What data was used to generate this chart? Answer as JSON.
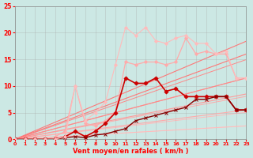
{
  "xlabel": "Vent moyen/en rafales ( km/h )",
  "ylabel": "",
  "xlim": [
    0,
    23
  ],
  "ylim": [
    0,
    25
  ],
  "xticks": [
    0,
    1,
    2,
    3,
    4,
    5,
    6,
    7,
    8,
    9,
    10,
    11,
    12,
    13,
    14,
    15,
    16,
    17,
    18,
    19,
    20,
    21,
    22,
    23
  ],
  "yticks": [
    0,
    5,
    10,
    15,
    20,
    25
  ],
  "background_color": "#cce8e4",
  "grid_color": "#aaaaaa",
  "series": [
    {
      "x": [
        0,
        23
      ],
      "y": [
        0,
        2.5
      ],
      "color": "#ffbbbb",
      "linewidth": 0.7,
      "marker": null,
      "linestyle": "-"
    },
    {
      "x": [
        0,
        23
      ],
      "y": [
        0,
        5.5
      ],
      "color": "#ffaaaa",
      "linewidth": 0.8,
      "marker": null,
      "linestyle": "-"
    },
    {
      "x": [
        0,
        23
      ],
      "y": [
        0,
        8.5
      ],
      "color": "#ff9999",
      "linewidth": 0.8,
      "marker": null,
      "linestyle": "-"
    },
    {
      "x": [
        0,
        23
      ],
      "y": [
        0,
        11.5
      ],
      "color": "#ff8888",
      "linewidth": 0.8,
      "marker": null,
      "linestyle": "-"
    },
    {
      "x": [
        0,
        23
      ],
      "y": [
        0,
        16.0
      ],
      "color": "#ff7777",
      "linewidth": 0.8,
      "marker": null,
      "linestyle": "-"
    },
    {
      "x": [
        0,
        1,
        2,
        3,
        4,
        5,
        6,
        7,
        8,
        9,
        10,
        11,
        12,
        13,
        14,
        15,
        16,
        17,
        18,
        19,
        20,
        21,
        22,
        23
      ],
      "y": [
        0,
        0,
        0,
        0,
        0.5,
        1.5,
        10.0,
        3.0,
        2.5,
        3.5,
        5.0,
        14.5,
        14.0,
        14.5,
        14.5,
        14.0,
        14.5,
        19.0,
        16.0,
        16.5,
        16.0,
        16.0,
        11.5,
        11.5
      ],
      "color": "#ffaaaa",
      "linewidth": 0.9,
      "marker": "D",
      "markersize": 2,
      "linestyle": "-"
    },
    {
      "x": [
        0,
        1,
        2,
        3,
        4,
        5,
        6,
        7,
        8,
        9,
        10,
        11,
        12,
        13,
        14,
        15,
        16,
        17,
        18,
        19,
        20,
        21,
        22,
        23
      ],
      "y": [
        0,
        0,
        0,
        0,
        0,
        0.5,
        1.5,
        0.5,
        1.5,
        3.0,
        5.0,
        11.5,
        10.5,
        10.5,
        11.5,
        9.0,
        9.5,
        8.0,
        8.0,
        8.0,
        8.0,
        8.0,
        5.5,
        5.5
      ],
      "color": "#cc0000",
      "linewidth": 1.2,
      "marker": "D",
      "markersize": 2.5,
      "linestyle": "-"
    },
    {
      "x": [
        0,
        1,
        2,
        3,
        4,
        5,
        6,
        7,
        8,
        9,
        10,
        11,
        12,
        13,
        14,
        15,
        16,
        17,
        18,
        19,
        20,
        21,
        22,
        23
      ],
      "y": [
        0,
        0,
        0,
        0,
        0,
        0.3,
        0.5,
        0.3,
        0.8,
        1.0,
        1.5,
        2.0,
        3.5,
        4.0,
        4.5,
        5.0,
        5.5,
        6.0,
        7.5,
        7.5,
        8.0,
        8.0,
        5.5,
        5.5
      ],
      "color": "#880000",
      "linewidth": 1.0,
      "marker": "x",
      "markersize": 3,
      "linestyle": "-"
    },
    {
      "x": [
        0,
        1,
        2,
        3,
        4,
        5,
        6,
        7,
        8,
        9,
        10,
        11,
        12,
        13,
        14,
        15,
        16,
        17,
        18,
        19,
        20,
        21,
        22,
        23
      ],
      "y": [
        0,
        0,
        0,
        0,
        0,
        0.5,
        10.0,
        3.5,
        5.0,
        7.0,
        14.0,
        21.0,
        19.5,
        21.0,
        18.5,
        18.0,
        19.0,
        19.5,
        18.0,
        18.0,
        16.0,
        16.5,
        11.5,
        11.5
      ],
      "color": "#ffbbbb",
      "linewidth": 0.8,
      "marker": "D",
      "markersize": 2,
      "linestyle": "-"
    }
  ]
}
